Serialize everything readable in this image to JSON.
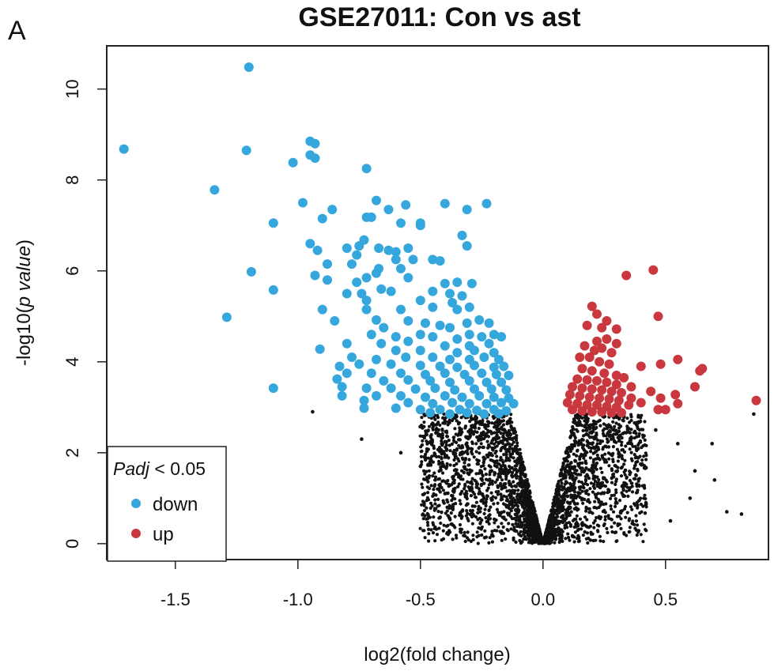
{
  "panel_label": "A",
  "chart_data": {
    "type": "scatter",
    "title": "GSE27011: Con vs ast",
    "xlabel": "log2(fold change)",
    "ylabel_prefix": "-log10(",
    "ylabel_italic": "p value",
    "ylabel_suffix": ")",
    "xlim": [
      -1.78,
      0.92
    ],
    "ylim": [
      -0.35,
      10.95
    ],
    "xticks": [
      -1.5,
      -1.0,
      -0.5,
      0.0,
      0.5
    ],
    "xtick_labels": [
      "-1.5",
      "-1.0",
      "-0.5",
      "0.0",
      "0.5"
    ],
    "yticks": [
      0,
      2,
      4,
      6,
      8,
      10
    ],
    "ytick_labels": [
      "0",
      "2",
      "4",
      "6",
      "8",
      "10"
    ],
    "legend": {
      "position": "bottom-left",
      "title_italic": "Padj",
      "title_rest": " < 0.05",
      "entries": [
        {
          "label": "down",
          "color": "#35a7dd"
        },
        {
          "label": "up",
          "color": "#c8383e"
        }
      ]
    },
    "colors": {
      "down": "#35a7dd",
      "up": "#c8383e",
      "ns": "#111111"
    },
    "series": [
      {
        "name": "down",
        "points": [
          [
            -1.2,
            10.48
          ],
          [
            -1.71,
            8.68
          ],
          [
            -1.21,
            8.65
          ],
          [
            -0.95,
            8.85
          ],
          [
            -0.93,
            8.8
          ],
          [
            -0.95,
            8.55
          ],
          [
            -0.93,
            8.48
          ],
          [
            -1.02,
            8.38
          ],
          [
            -0.72,
            8.25
          ],
          [
            -1.34,
            7.78
          ],
          [
            -0.98,
            7.5
          ],
          [
            -0.68,
            7.55
          ],
          [
            -0.63,
            7.35
          ],
          [
            -0.56,
            7.45
          ],
          [
            -0.4,
            7.48
          ],
          [
            -0.23,
            7.48
          ],
          [
            -0.31,
            7.35
          ],
          [
            -0.86,
            7.35
          ],
          [
            -0.9,
            7.15
          ],
          [
            -0.7,
            7.18
          ],
          [
            -0.72,
            7.18
          ],
          [
            -1.1,
            7.05
          ],
          [
            -0.58,
            7.05
          ],
          [
            -0.5,
            7.0
          ],
          [
            -0.5,
            7.05
          ],
          [
            -0.73,
            6.68
          ],
          [
            -0.75,
            6.55
          ],
          [
            -0.95,
            6.6
          ],
          [
            -0.8,
            6.5
          ],
          [
            -0.33,
            6.78
          ],
          [
            -0.31,
            6.55
          ],
          [
            -0.92,
            6.45
          ],
          [
            -0.67,
            6.5
          ],
          [
            -0.63,
            6.45
          ],
          [
            -0.6,
            6.42
          ],
          [
            -0.55,
            6.5
          ],
          [
            -0.76,
            6.35
          ],
          [
            -0.6,
            6.25
          ],
          [
            -0.53,
            6.25
          ],
          [
            -0.45,
            6.25
          ],
          [
            -0.42,
            6.22
          ],
          [
            -0.88,
            6.15
          ],
          [
            -0.78,
            6.15
          ],
          [
            -0.58,
            6.05
          ],
          [
            -0.67,
            6.05
          ],
          [
            -0.68,
            5.95
          ],
          [
            -1.19,
            5.98
          ],
          [
            -0.93,
            5.9
          ],
          [
            -0.72,
            5.85
          ],
          [
            -0.55,
            5.85
          ],
          [
            -0.88,
            5.8
          ],
          [
            -0.76,
            5.75
          ],
          [
            -0.4,
            5.72
          ],
          [
            -0.35,
            5.75
          ],
          [
            -0.29,
            5.72
          ],
          [
            -0.66,
            5.6
          ],
          [
            -0.62,
            5.55
          ],
          [
            -1.1,
            5.58
          ],
          [
            -0.8,
            5.5
          ],
          [
            -0.74,
            5.5
          ],
          [
            -0.45,
            5.55
          ],
          [
            -0.38,
            5.5
          ],
          [
            -0.33,
            5.45
          ],
          [
            -0.72,
            5.35
          ],
          [
            -0.5,
            5.35
          ],
          [
            -0.37,
            5.3
          ],
          [
            -0.9,
            5.15
          ],
          [
            -0.72,
            5.15
          ],
          [
            -0.58,
            5.15
          ],
          [
            -0.45,
            5.2
          ],
          [
            -0.35,
            5.15
          ],
          [
            -0.3,
            5.2
          ],
          [
            -1.29,
            4.98
          ],
          [
            -0.85,
            4.9
          ],
          [
            -0.68,
            4.92
          ],
          [
            -0.55,
            4.9
          ],
          [
            -0.65,
            4.75
          ],
          [
            -0.48,
            4.85
          ],
          [
            -0.42,
            4.8
          ],
          [
            -0.38,
            4.75
          ],
          [
            -0.31,
            4.85
          ],
          [
            -0.26,
            4.92
          ],
          [
            -0.22,
            4.85
          ],
          [
            -0.7,
            4.6
          ],
          [
            -0.6,
            4.55
          ],
          [
            -0.5,
            4.6
          ],
          [
            -0.45,
            4.55
          ],
          [
            -0.35,
            4.5
          ],
          [
            -0.3,
            4.6
          ],
          [
            -0.25,
            4.55
          ],
          [
            -0.2,
            4.6
          ],
          [
            -0.17,
            4.55
          ],
          [
            -0.8,
            4.4
          ],
          [
            -0.66,
            4.4
          ],
          [
            -0.55,
            4.45
          ],
          [
            -0.4,
            4.35
          ],
          [
            -0.3,
            4.35
          ],
          [
            -0.22,
            4.4
          ],
          [
            -0.91,
            4.28
          ],
          [
            -0.6,
            4.25
          ],
          [
            -0.5,
            4.25
          ],
          [
            -0.35,
            4.2
          ],
          [
            -0.28,
            4.25
          ],
          [
            -0.2,
            4.2
          ],
          [
            -0.78,
            4.1
          ],
          [
            -0.68,
            4.05
          ],
          [
            -0.56,
            4.1
          ],
          [
            -0.45,
            4.1
          ],
          [
            -0.38,
            4.05
          ],
          [
            -0.3,
            4.05
          ],
          [
            -0.24,
            4.1
          ],
          [
            -0.18,
            4.05
          ],
          [
            -0.83,
            3.9
          ],
          [
            -0.75,
            3.95
          ],
          [
            -0.62,
            3.95
          ],
          [
            -0.5,
            3.92
          ],
          [
            -0.42,
            3.9
          ],
          [
            -0.35,
            3.88
          ],
          [
            -0.28,
            3.92
          ],
          [
            -0.2,
            3.88
          ],
          [
            -0.16,
            3.9
          ],
          [
            -0.8,
            3.75
          ],
          [
            -0.7,
            3.75
          ],
          [
            -0.58,
            3.75
          ],
          [
            -0.48,
            3.72
          ],
          [
            -0.4,
            3.75
          ],
          [
            -0.32,
            3.72
          ],
          [
            -0.25,
            3.75
          ],
          [
            -0.19,
            3.72
          ],
          [
            -0.14,
            3.7
          ],
          [
            -0.84,
            3.62
          ],
          [
            -0.65,
            3.58
          ],
          [
            -0.55,
            3.6
          ],
          [
            -0.46,
            3.58
          ],
          [
            -0.38,
            3.55
          ],
          [
            -0.3,
            3.58
          ],
          [
            -0.23,
            3.55
          ],
          [
            -0.17,
            3.55
          ],
          [
            -1.1,
            3.42
          ],
          [
            -0.82,
            3.45
          ],
          [
            -0.72,
            3.42
          ],
          [
            -0.62,
            3.42
          ],
          [
            -0.52,
            3.4
          ],
          [
            -0.44,
            3.42
          ],
          [
            -0.36,
            3.38
          ],
          [
            -0.28,
            3.4
          ],
          [
            -0.21,
            3.4
          ],
          [
            -0.15,
            3.38
          ],
          [
            -0.82,
            3.25
          ],
          [
            -0.68,
            3.25
          ],
          [
            -0.58,
            3.25
          ],
          [
            -0.48,
            3.22
          ],
          [
            -0.4,
            3.25
          ],
          [
            -0.33,
            3.22
          ],
          [
            -0.26,
            3.25
          ],
          [
            -0.2,
            3.22
          ],
          [
            -0.14,
            3.2
          ],
          [
            -0.73,
            3.15
          ],
          [
            -0.55,
            3.1
          ],
          [
            -0.45,
            3.08
          ],
          [
            -0.37,
            3.1
          ],
          [
            -0.3,
            3.08
          ],
          [
            -0.23,
            3.08
          ],
          [
            -0.17,
            3.1
          ],
          [
            -0.12,
            3.08
          ],
          [
            -0.6,
            2.98
          ],
          [
            -0.5,
            2.95
          ],
          [
            -0.42,
            2.95
          ],
          [
            -0.34,
            2.95
          ],
          [
            -0.27,
            2.93
          ],
          [
            -0.2,
            2.95
          ],
          [
            -0.15,
            2.92
          ],
          [
            -0.73,
            2.98
          ],
          [
            -0.46,
            2.88
          ],
          [
            -0.38,
            2.85
          ],
          [
            -0.31,
            2.88
          ],
          [
            -0.24,
            2.85
          ],
          [
            -0.18,
            2.86
          ]
        ]
      },
      {
        "name": "up",
        "points": [
          [
            0.45,
            6.02
          ],
          [
            0.34,
            5.9
          ],
          [
            0.2,
            5.22
          ],
          [
            0.22,
            5.05
          ],
          [
            0.26,
            4.9
          ],
          [
            0.47,
            5.0
          ],
          [
            0.24,
            4.75
          ],
          [
            0.3,
            4.72
          ],
          [
            0.18,
            4.8
          ],
          [
            0.22,
            4.45
          ],
          [
            0.26,
            4.5
          ],
          [
            0.3,
            4.4
          ],
          [
            0.17,
            4.35
          ],
          [
            0.21,
            4.25
          ],
          [
            0.24,
            4.3
          ],
          [
            0.28,
            4.2
          ],
          [
            0.19,
            4.1
          ],
          [
            0.15,
            4.1
          ],
          [
            0.55,
            4.05
          ],
          [
            0.48,
            3.95
          ],
          [
            0.4,
            3.9
          ],
          [
            0.23,
            4.0
          ],
          [
            0.27,
            3.95
          ],
          [
            0.65,
            3.85
          ],
          [
            0.64,
            3.8
          ],
          [
            0.16,
            3.85
          ],
          [
            0.2,
            3.8
          ],
          [
            0.25,
            3.75
          ],
          [
            0.3,
            3.7
          ],
          [
            0.33,
            3.65
          ],
          [
            0.14,
            3.62
          ],
          [
            0.18,
            3.6
          ],
          [
            0.22,
            3.58
          ],
          [
            0.26,
            3.55
          ],
          [
            0.3,
            3.5
          ],
          [
            0.36,
            3.45
          ],
          [
            0.62,
            3.45
          ],
          [
            0.12,
            3.45
          ],
          [
            0.16,
            3.42
          ],
          [
            0.2,
            3.4
          ],
          [
            0.24,
            3.38
          ],
          [
            0.28,
            3.35
          ],
          [
            0.32,
            3.32
          ],
          [
            0.44,
            3.35
          ],
          [
            0.48,
            3.2
          ],
          [
            0.54,
            3.28
          ],
          [
            0.11,
            3.28
          ],
          [
            0.15,
            3.25
          ],
          [
            0.19,
            3.22
          ],
          [
            0.23,
            3.2
          ],
          [
            0.27,
            3.18
          ],
          [
            0.31,
            3.15
          ],
          [
            0.36,
            3.2
          ],
          [
            0.87,
            3.15
          ],
          [
            0.1,
            3.1
          ],
          [
            0.14,
            3.08
          ],
          [
            0.18,
            3.05
          ],
          [
            0.22,
            3.05
          ],
          [
            0.26,
            3.02
          ],
          [
            0.3,
            3.0
          ],
          [
            0.35,
            3.05
          ],
          [
            0.4,
            3.1
          ],
          [
            0.55,
            3.08
          ],
          [
            0.47,
            2.95
          ],
          [
            0.5,
            2.95
          ],
          [
            0.12,
            2.95
          ],
          [
            0.16,
            2.92
          ],
          [
            0.2,
            2.9
          ],
          [
            0.24,
            2.9
          ],
          [
            0.28,
            2.88
          ],
          [
            0.32,
            2.88
          ]
        ]
      }
    ]
  }
}
